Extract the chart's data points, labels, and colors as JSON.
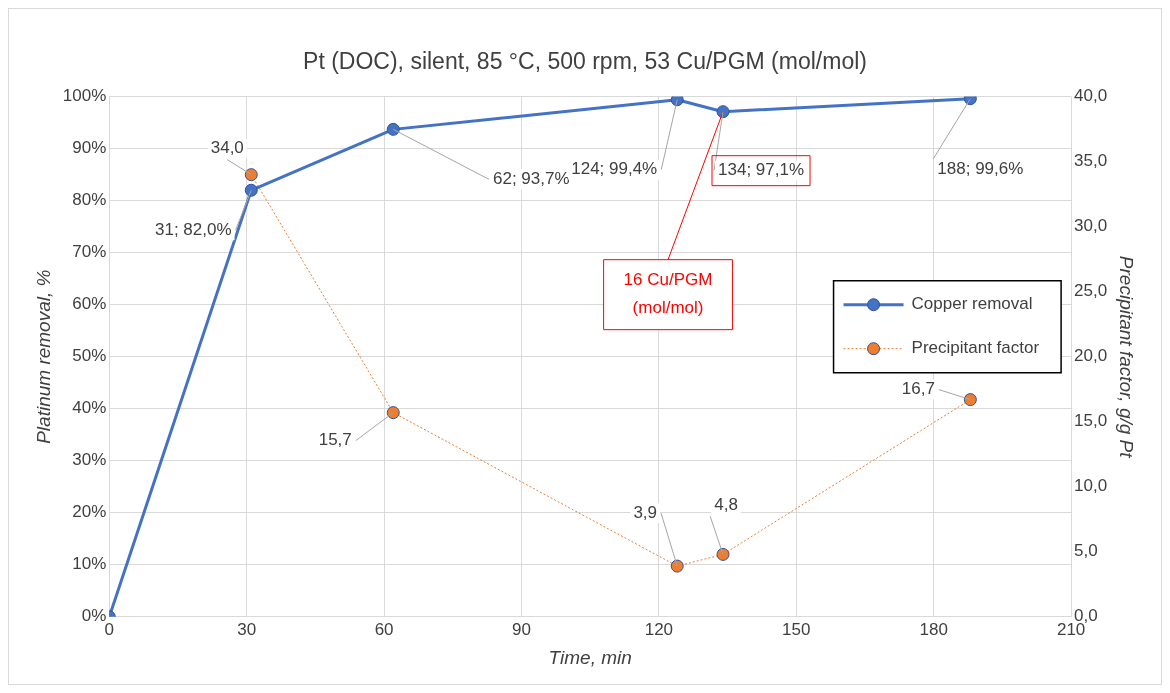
{
  "chart_data": {
    "type": "line",
    "title": "Pt (DOC), silent, 85 °C, 500 rpm, 53 Cu/PGM (mol/mol)",
    "xlabel": "Time, min",
    "ylabel": "Platinum removal, %",
    "y2label": "Precipitant factor, g/g Pt",
    "xlim": [
      0,
      210
    ],
    "xticks": [
      0,
      30,
      60,
      90,
      120,
      150,
      180,
      210
    ],
    "ylim": [
      0,
      100
    ],
    "yticks": [
      {
        "value": 0,
        "label": "0%"
      },
      {
        "value": 10,
        "label": "10%"
      },
      {
        "value": 20,
        "label": "20%"
      },
      {
        "value": 30,
        "label": "30%"
      },
      {
        "value": 40,
        "label": "40%"
      },
      {
        "value": 50,
        "label": "50%"
      },
      {
        "value": 60,
        "label": "60%"
      },
      {
        "value": 70,
        "label": "70%"
      },
      {
        "value": 80,
        "label": "80%"
      },
      {
        "value": 90,
        "label": "90%"
      },
      {
        "value": 100,
        "label": "100%"
      }
    ],
    "y2lim": [
      0,
      40
    ],
    "y2ticks": [
      {
        "value": 0,
        "label": "0,0"
      },
      {
        "value": 5,
        "label": "5,0"
      },
      {
        "value": 10,
        "label": "10,0"
      },
      {
        "value": 15,
        "label": "15,0"
      },
      {
        "value": 20,
        "label": "20,0"
      },
      {
        "value": 25,
        "label": "25,0"
      },
      {
        "value": 30,
        "label": "30,0"
      },
      {
        "value": 35,
        "label": "35,0"
      },
      {
        "value": 40,
        "label": "40,0"
      }
    ],
    "grid": true,
    "legend": "right",
    "marker": "circle",
    "series": [
      {
        "name": "Copper removal",
        "color": "#4472c4",
        "line_style": "solid",
        "x": [
          0,
          31,
          62,
          124,
          134,
          188
        ],
        "values": [
          0,
          82.0,
          93.7,
          99.4,
          97.1,
          99.6
        ],
        "value_labels": [
          null,
          "31; 82,0%",
          "62; 93,7%",
          "124; 99,4%",
          "134; 97,1%",
          "188; 99,6%"
        ]
      },
      {
        "name": "Precipitant factor",
        "color": "#ed7d31",
        "line_style": "dotted",
        "axis": "y2",
        "x": [
          31,
          62,
          124,
          134,
          188
        ],
        "values": [
          34.0,
          15.7,
          3.9,
          4.8,
          16.7
        ],
        "value_labels": [
          "34,0",
          "15,7",
          "3,9",
          "4,8",
          "16,7"
        ]
      }
    ],
    "annotations": [
      {
        "text": "16 Cu/PGM (mol/mol)",
        "x": 134,
        "y": 97.1
      }
    ]
  }
}
